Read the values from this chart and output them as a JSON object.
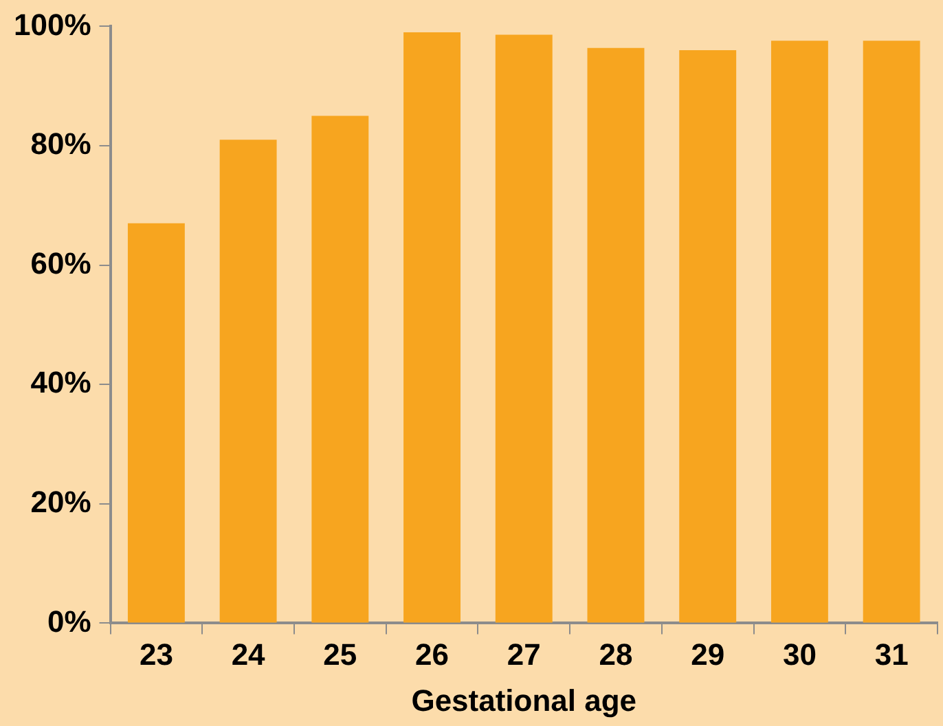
{
  "chart_data": {
    "type": "bar",
    "xlabel": "Gestational age",
    "categories": [
      "23",
      "24",
      "25",
      "26",
      "27",
      "28",
      "29",
      "30",
      "31"
    ],
    "values": [
      67,
      81,
      85,
      99,
      98.6,
      96.4,
      96,
      97.6,
      97.6
    ],
    "color": "#f7a51f",
    "ylim": [
      0,
      100
    ],
    "yticks": [
      {
        "value": 0,
        "label": "0%"
      },
      {
        "value": 20,
        "label": "20%"
      },
      {
        "value": 40,
        "label": "40%"
      },
      {
        "value": 60,
        "label": "60%"
      },
      {
        "value": 80,
        "label": "80%"
      },
      {
        "value": 100,
        "label": "100%"
      }
    ],
    "grid": false,
    "legend": false
  }
}
